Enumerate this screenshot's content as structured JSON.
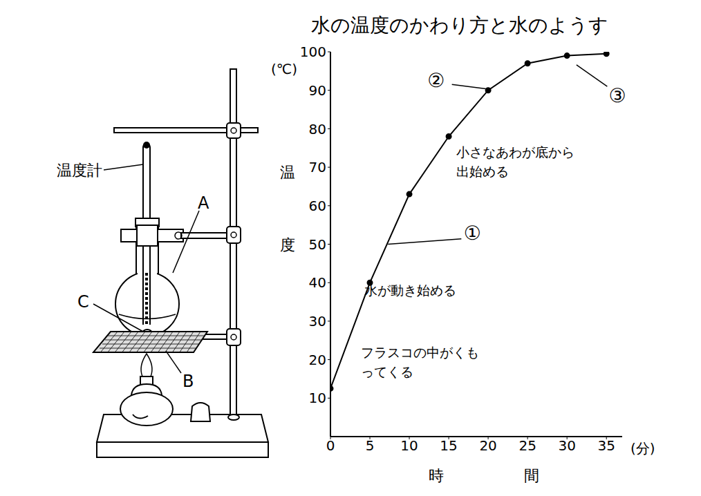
{
  "chart_data": {
    "type": "line",
    "title": "水の温度のかわり方と水のようす",
    "x_label": "時間",
    "x_unit": "(分)",
    "y_label": "温度",
    "y_unit": "(℃)",
    "x": [
      0,
      5,
      10,
      15,
      20,
      25,
      30,
      35
    ],
    "values": [
      12.5,
      40,
      63,
      78,
      90,
      97,
      99,
      99.5
    ],
    "xlim": [
      0,
      37
    ],
    "ylim": [
      0,
      100
    ],
    "xticks": [
      0,
      5,
      10,
      15,
      20,
      25,
      30,
      35
    ],
    "yticks": [
      10,
      20,
      30,
      40,
      50,
      60,
      70,
      80,
      90,
      100
    ],
    "grid": false,
    "marker": "circle",
    "color": "#000000",
    "annotations": [
      "小さなあわが底から出始める",
      "水が動き始める",
      "フラスコの中がくもってくる"
    ],
    "callouts": [
      "①",
      "②",
      "③"
    ]
  },
  "diagram": {
    "thermometer": "温度計",
    "flask": "A",
    "gauze": "B",
    "stone": "C"
  }
}
